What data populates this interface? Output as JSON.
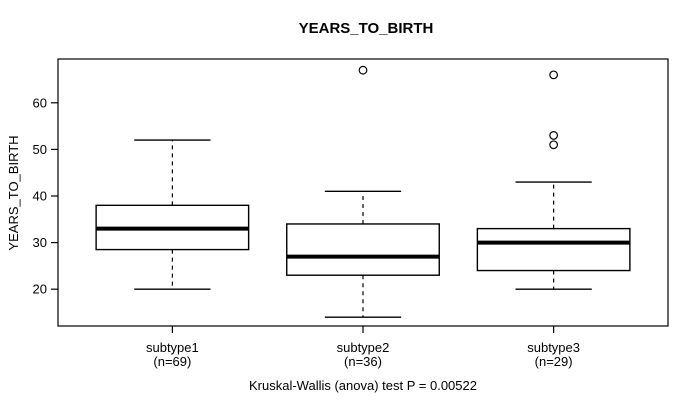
{
  "colors": {
    "line": "#000000",
    "background": "#ffffff",
    "box_fill": "#ffffff"
  },
  "chart_data": {
    "type": "boxplot",
    "title": "YEARS_TO_BIRTH",
    "ylabel": "YEARS_TO_BIRTH",
    "xlabel": "",
    "caption": "Kruskal-Wallis (anova) test P = 0.00522",
    "ylim": [
      12.1,
      69.4
    ],
    "yticks": [
      20,
      30,
      40,
      50,
      60
    ],
    "grid": false,
    "legend": "none",
    "groups": [
      {
        "label": "subtype1",
        "sublabel": "(n=69)",
        "n": 69,
        "whisker_low": 20,
        "q1": 28.5,
        "median": 33,
        "q3": 38,
        "whisker_high": 52,
        "outliers": []
      },
      {
        "label": "subtype2",
        "sublabel": "(n=36)",
        "n": 36,
        "whisker_low": 14,
        "q1": 23,
        "median": 27,
        "q3": 34,
        "whisker_high": 41,
        "outliers": [
          67
        ]
      },
      {
        "label": "subtype3",
        "sublabel": "(n=29)",
        "n": 29,
        "whisker_low": 20,
        "q1": 24,
        "median": 30,
        "q3": 33,
        "whisker_high": 43,
        "outliers": [
          51,
          53,
          66
        ]
      }
    ]
  }
}
